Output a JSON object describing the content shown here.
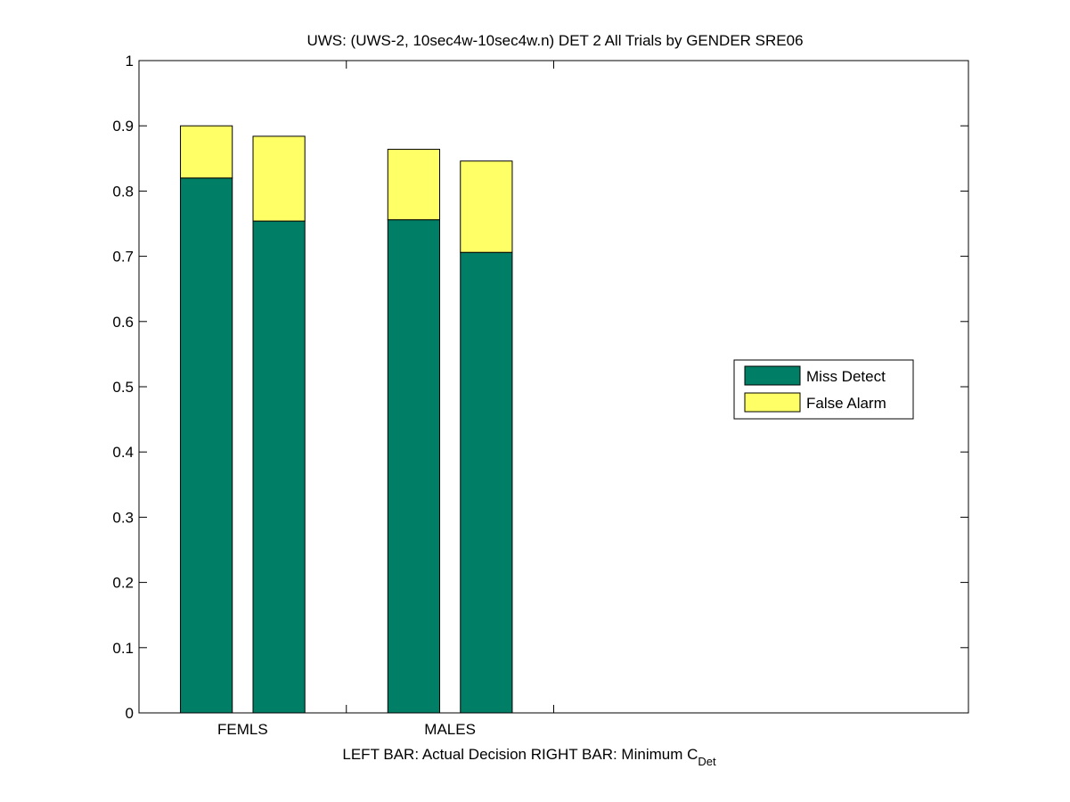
{
  "chart_data": {
    "type": "bar",
    "stacked": true,
    "title": "UWS: (UWS-2, 10sec4w-10sec4w.n) DET 2 All Trials by GENDER SRE06",
    "xlabel_main": "LEFT BAR: Actual Decision      RIGHT BAR: Minimum C",
    "xlabel_subscript": "Det",
    "ylabel": "",
    "ylim": [
      0,
      1
    ],
    "yticks": [
      "0",
      "0.1",
      "0.2",
      "0.3",
      "0.4",
      "0.5",
      "0.6",
      "0.7",
      "0.8",
      "0.9",
      "1"
    ],
    "xlim": [
      0,
      8
    ],
    "category_ticks": [
      2,
      4
    ],
    "category_labels": [
      {
        "label": "FEMLS",
        "position": 1
      },
      {
        "label": "MALES",
        "position": 3
      }
    ],
    "bars": [
      {
        "group": "FEMLS",
        "position": 0.65,
        "miss_detect": 0.82,
        "false_alarm": 0.08
      },
      {
        "group": "FEMLS",
        "position": 1.35,
        "miss_detect": 0.754,
        "false_alarm": 0.13
      },
      {
        "group": "MALES",
        "position": 2.65,
        "miss_detect": 0.756,
        "false_alarm": 0.108
      },
      {
        "group": "MALES",
        "position": 3.35,
        "miss_detect": 0.706,
        "false_alarm": 0.14
      }
    ],
    "series": [
      {
        "name": "Miss Detect",
        "color": "#007f66"
      },
      {
        "name": "False Alarm",
        "color": "#ffff66"
      }
    ],
    "legend_position": "right-middle",
    "grid": false
  }
}
